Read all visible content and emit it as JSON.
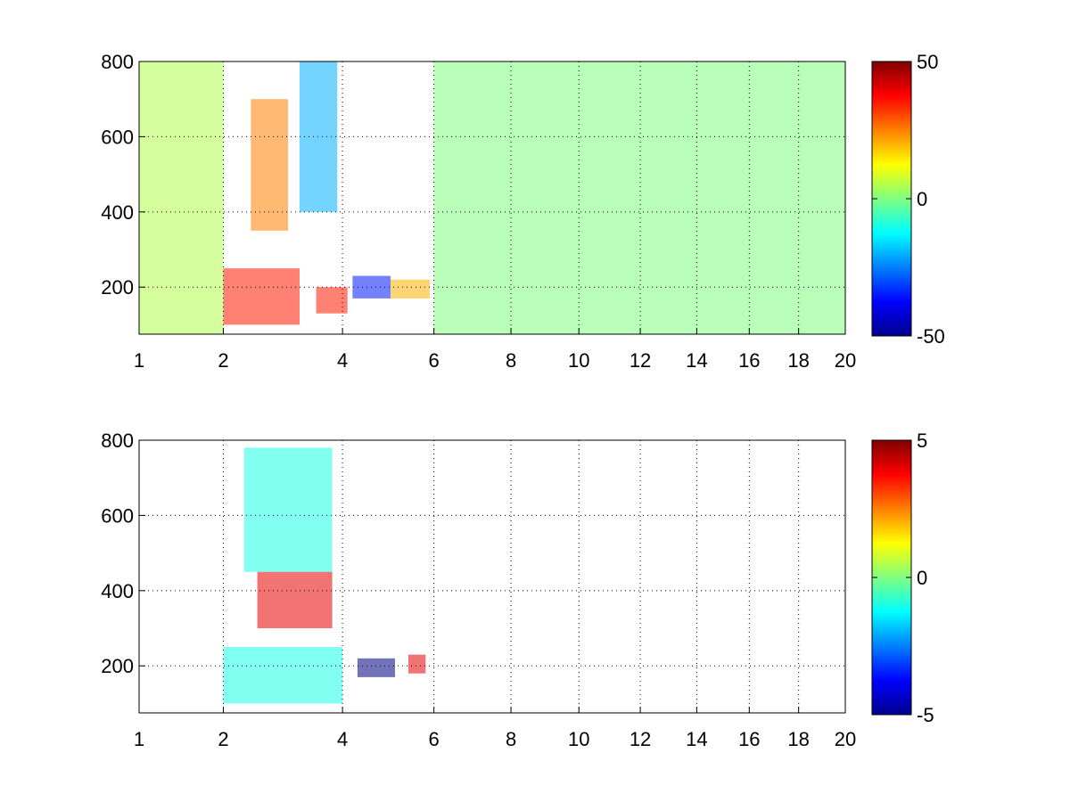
{
  "chart_data": [
    {
      "type": "heatmap",
      "title": "",
      "xlabel": "",
      "ylabel": "",
      "xlim": [
        1,
        20
      ],
      "ylim": [
        75,
        800
      ],
      "x_scale": "sqrt",
      "x_ticks": [
        1,
        2,
        4,
        6,
        8,
        10,
        12,
        14,
        16,
        18,
        20
      ],
      "x_tick_labels": [
        "1",
        "2",
        "4",
        "6",
        "8",
        "10",
        "12",
        "14",
        "16",
        "18",
        "20"
      ],
      "y_ticks": [
        200,
        400,
        600,
        800
      ],
      "y_tick_labels": [
        "200",
        "400",
        "600",
        "800"
      ],
      "grid": true,
      "colormap": "jet",
      "clim": [
        -50,
        50
      ],
      "colorbar_ticks": [
        -50,
        0,
        50
      ],
      "colorbar_tick_labels": [
        "-50",
        "0",
        "50"
      ],
      "regions": [
        {
          "x": [
            1.0,
            2.0
          ],
          "y": [
            75,
            800
          ],
          "value": 5
        },
        {
          "x": [
            2.0,
            3.2
          ],
          "y": [
            100,
            250
          ],
          "value": 35
        },
        {
          "x": [
            2.4,
            3.0
          ],
          "y": [
            350,
            700
          ],
          "value": 25
        },
        {
          "x": [
            3.2,
            3.9
          ],
          "y": [
            400,
            800
          ],
          "value": -20
        },
        {
          "x": [
            3.5,
            4.1
          ],
          "y": [
            130,
            200
          ],
          "value": 35
        },
        {
          "x": [
            4.2,
            5.0
          ],
          "y": [
            170,
            230
          ],
          "value": -35
        },
        {
          "x": [
            5.0,
            5.9
          ],
          "y": [
            170,
            220
          ],
          "value": 20
        },
        {
          "x": [
            6.0,
            20.0
          ],
          "y": [
            75,
            800
          ],
          "value": 0
        }
      ]
    },
    {
      "type": "heatmap",
      "title": "",
      "xlabel": "",
      "ylabel": "",
      "xlim": [
        1,
        20
      ],
      "ylim": [
        75,
        800
      ],
      "x_scale": "sqrt",
      "x_ticks": [
        1,
        2,
        4,
        6,
        8,
        10,
        12,
        14,
        16,
        18,
        20
      ],
      "x_tick_labels": [
        "1",
        "2",
        "4",
        "6",
        "8",
        "10",
        "12",
        "14",
        "16",
        "18",
        "20"
      ],
      "y_ticks": [
        200,
        400,
        600,
        800
      ],
      "y_tick_labels": [
        "200",
        "400",
        "600",
        "800"
      ],
      "grid": true,
      "colormap": "jet",
      "clim": [
        -5,
        5
      ],
      "colorbar_ticks": [
        -5,
        0,
        5
      ],
      "colorbar_tick_labels": [
        "-5",
        "0",
        "5"
      ],
      "regions": [
        {
          "x": [
            2.0,
            4.0
          ],
          "y": [
            100,
            250
          ],
          "value": -1
        },
        {
          "x": [
            2.5,
            3.8
          ],
          "y": [
            300,
            450
          ],
          "value": 4
        },
        {
          "x": [
            2.3,
            3.8
          ],
          "y": [
            450,
            780
          ],
          "value": -1
        },
        {
          "x": [
            4.3,
            5.1
          ],
          "y": [
            170,
            220
          ],
          "value": -5
        },
        {
          "x": [
            5.4,
            5.8
          ],
          "y": [
            180,
            230
          ],
          "value": 4
        }
      ]
    }
  ]
}
